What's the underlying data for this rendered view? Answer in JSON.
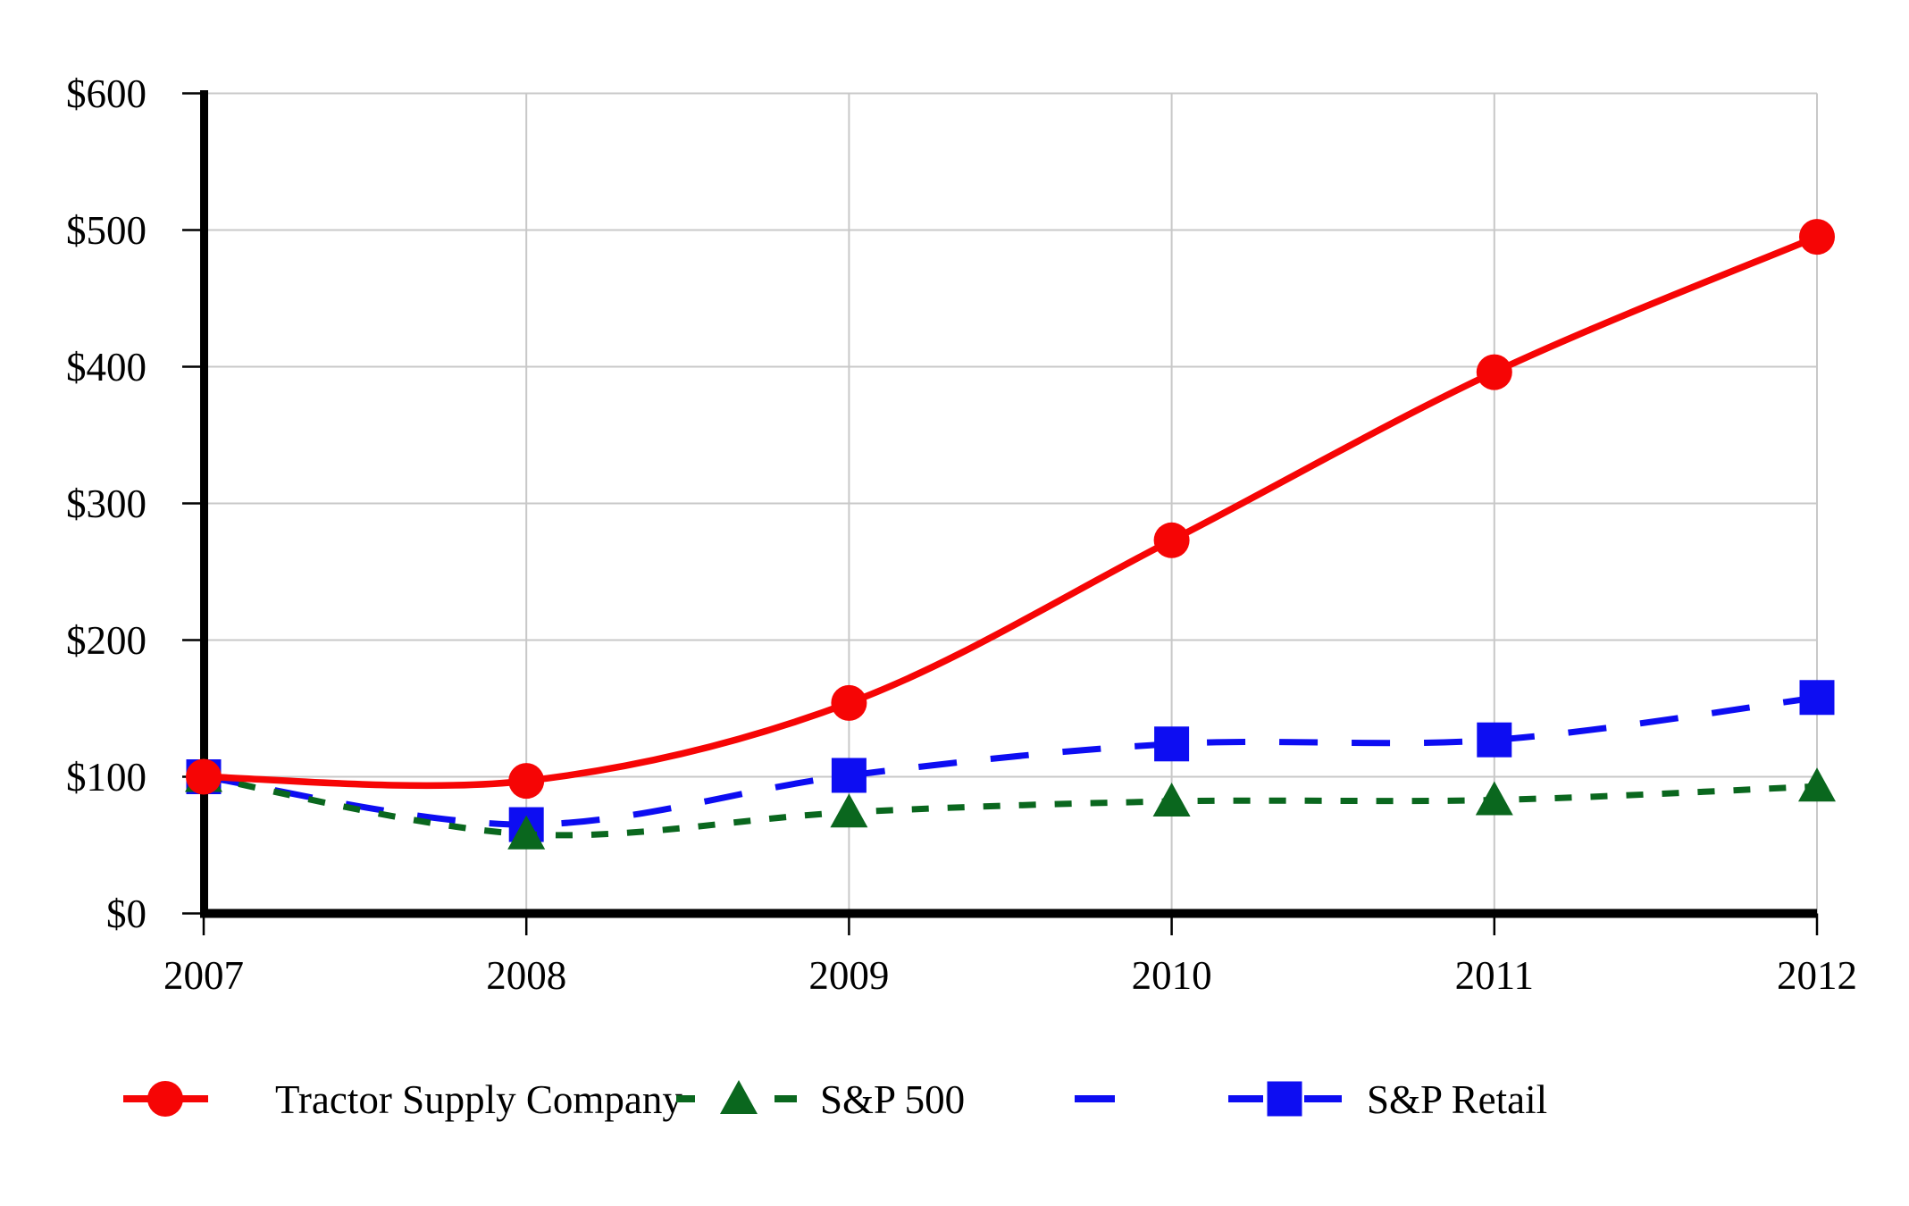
{
  "chart_data": {
    "type": "line",
    "title": "",
    "xlabel": "",
    "ylabel": "",
    "x_labels": [
      "2007",
      "2008",
      "2009",
      "2010",
      "2011",
      "2012"
    ],
    "y_tick_labels": [
      "$0",
      "$100",
      "$200",
      "$300",
      "$400",
      "$500",
      "$600"
    ],
    "ylim": [
      0,
      600
    ],
    "y_tick_step": 100,
    "grid": true,
    "legend_position": "bottom",
    "colors": {
      "grid": "#c8c8c8",
      "axis": "#000000",
      "background": "#ffffff"
    },
    "series": [
      {
        "name": "Tractor Supply Company",
        "color": "#f60505",
        "marker": "circle",
        "line": "solid",
        "values": [
          100,
          97,
          154,
          273,
          396,
          495
        ]
      },
      {
        "name": "S&P 500",
        "color": "#0a671e",
        "marker": "triangle",
        "line": "short-dash",
        "values": [
          100,
          58,
          74,
          82,
          83,
          93
        ]
      },
      {
        "name": "S&P Retail",
        "color": "#0d0df2",
        "marker": "square",
        "line": "long-dash",
        "values": [
          100,
          65,
          101,
          124,
          127,
          158
        ]
      }
    ]
  }
}
